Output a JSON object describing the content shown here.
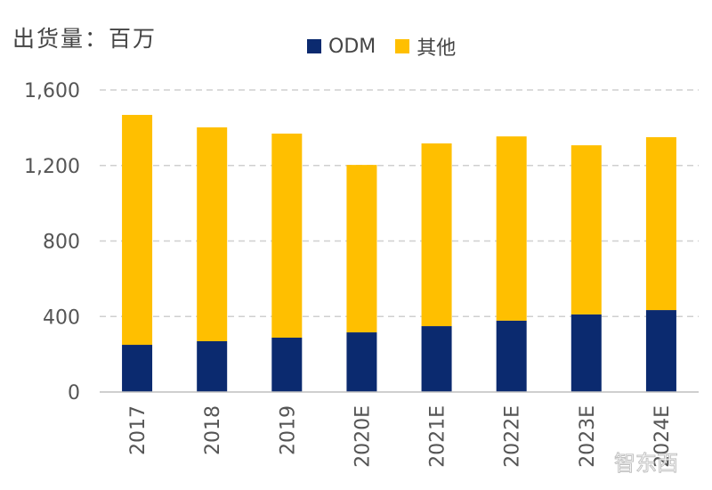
{
  "chart_data": {
    "type": "bar",
    "stacked": true,
    "title": "出货量：百万",
    "categories": [
      "2017",
      "2018",
      "2019",
      "2020E",
      "2021E",
      "2022E",
      "2023E",
      "2024E"
    ],
    "series": [
      {
        "name": "ODM",
        "color": "#0b2a6f",
        "values": [
          250,
          269,
          288,
          316,
          349,
          378,
          411,
          434
        ]
      },
      {
        "name": "其他",
        "color": "#ffbf00",
        "values": [
          1218,
          1133,
          1081,
          887,
          968,
          976,
          896,
          916
        ]
      }
    ],
    "yticks": [
      "0",
      "400",
      "800",
      "1,200",
      "1,600"
    ],
    "ylim": [
      0,
      1600
    ],
    "grid": true,
    "legend": "top"
  },
  "watermark": "智东西"
}
